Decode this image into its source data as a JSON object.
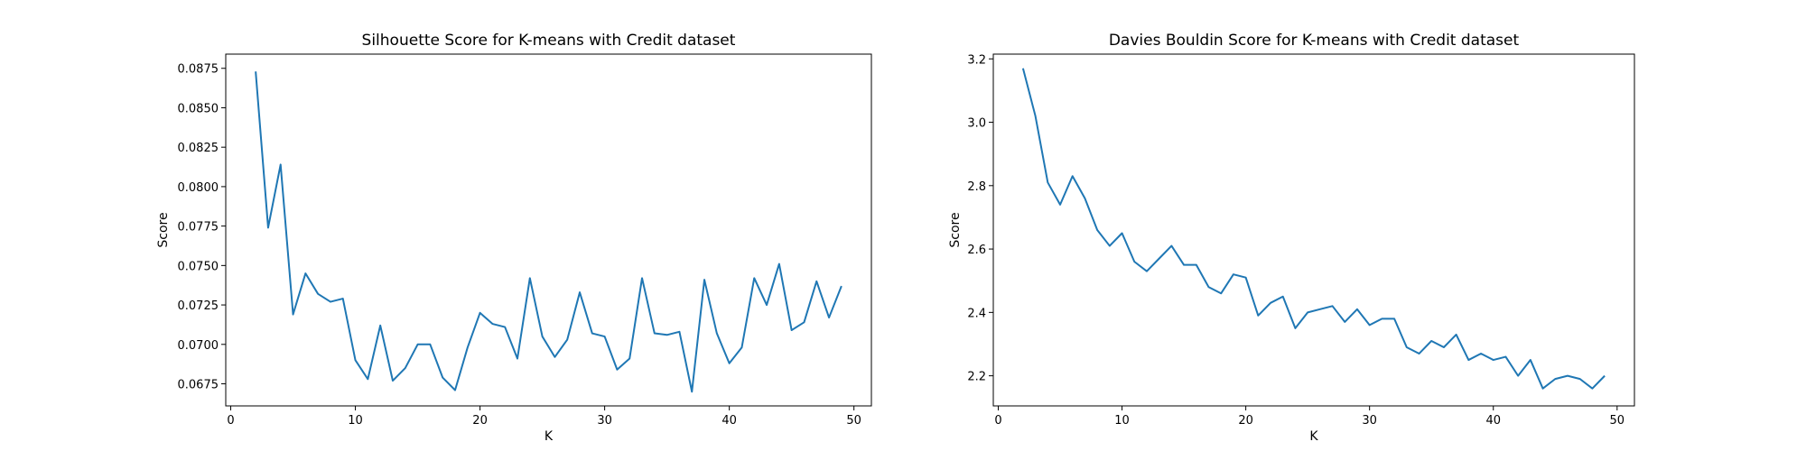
{
  "chart_data": [
    {
      "type": "line",
      "title": "Silhouette Score for K-means with Credit dataset",
      "xlabel": "K",
      "ylabel": "Score",
      "xlim": [
        -0.4,
        51.4
      ],
      "ylim": [
        0.0661,
        0.0884
      ],
      "xticks": [
        0,
        10,
        20,
        30,
        40,
        50
      ],
      "yticks": [
        0.0675,
        0.07,
        0.0725,
        0.075,
        0.0775,
        0.08,
        0.0825,
        0.085,
        0.0875
      ],
      "ytick_labels": [
        "0.0675",
        "0.0700",
        "0.0725",
        "0.0750",
        "0.0775",
        "0.0800",
        "0.0825",
        "0.0850",
        "0.0875"
      ],
      "xtick_labels": [
        "0",
        "10",
        "20",
        "30",
        "40",
        "50"
      ],
      "grid": false,
      "color": "#1f77b4",
      "x": [
        2,
        3,
        4,
        5,
        6,
        7,
        8,
        9,
        10,
        11,
        12,
        13,
        14,
        15,
        16,
        17,
        18,
        19,
        20,
        21,
        22,
        23,
        24,
        25,
        26,
        27,
        28,
        29,
        30,
        31,
        32,
        33,
        34,
        35,
        36,
        37,
        38,
        39,
        40,
        41,
        42,
        43,
        44,
        45,
        46,
        47,
        48,
        49
      ],
      "y": [
        0.0873,
        0.0774,
        0.0814,
        0.0719,
        0.0745,
        0.0732,
        0.0727,
        0.0729,
        0.069,
        0.0678,
        0.0712,
        0.0677,
        0.0685,
        0.07,
        0.07,
        0.0679,
        0.0671,
        0.0698,
        0.072,
        0.0713,
        0.0711,
        0.0691,
        0.0742,
        0.0705,
        0.0692,
        0.0703,
        0.0733,
        0.0707,
        0.0705,
        0.0684,
        0.0691,
        0.0742,
        0.0707,
        0.0706,
        0.0708,
        0.067,
        0.0741,
        0.0707,
        0.0688,
        0.0698,
        0.0742,
        0.0725,
        0.0751,
        0.0709,
        0.0714,
        0.074,
        0.0717,
        0.0737
      ]
    },
    {
      "type": "line",
      "title": "Davies Bouldin Score for K-means with Credit dataset",
      "xlabel": "K",
      "ylabel": "Score",
      "xlim": [
        -0.4,
        51.4
      ],
      "ylim": [
        2.105,
        3.215
      ],
      "xticks": [
        0,
        10,
        20,
        30,
        40,
        50
      ],
      "yticks": [
        2.2,
        2.4,
        2.6,
        2.8,
        3.0,
        3.2
      ],
      "ytick_labels": [
        "2.2",
        "2.4",
        "2.6",
        "2.8",
        "3.0",
        "3.2"
      ],
      "xtick_labels": [
        "0",
        "10",
        "20",
        "30",
        "40",
        "50"
      ],
      "grid": false,
      "color": "#1f77b4",
      "x": [
        2,
        3,
        4,
        5,
        6,
        7,
        8,
        9,
        10,
        11,
        12,
        13,
        14,
        15,
        16,
        17,
        18,
        19,
        20,
        21,
        22,
        23,
        24,
        25,
        26,
        27,
        28,
        29,
        30,
        31,
        32,
        33,
        34,
        35,
        36,
        37,
        38,
        39,
        40,
        41,
        42,
        43,
        44,
        45,
        46,
        47,
        48,
        49
      ],
      "y": [
        3.17,
        3.02,
        2.81,
        2.74,
        2.83,
        2.76,
        2.66,
        2.61,
        2.65,
        2.56,
        2.53,
        2.57,
        2.61,
        2.55,
        2.55,
        2.48,
        2.46,
        2.52,
        2.51,
        2.39,
        2.43,
        2.45,
        2.35,
        2.4,
        2.41,
        2.42,
        2.37,
        2.41,
        2.36,
        2.38,
        2.38,
        2.29,
        2.27,
        2.31,
        2.29,
        2.33,
        2.25,
        2.27,
        2.25,
        2.26,
        2.2,
        2.25,
        2.16,
        2.19,
        2.2,
        2.19,
        2.16,
        2.2
      ]
    }
  ]
}
